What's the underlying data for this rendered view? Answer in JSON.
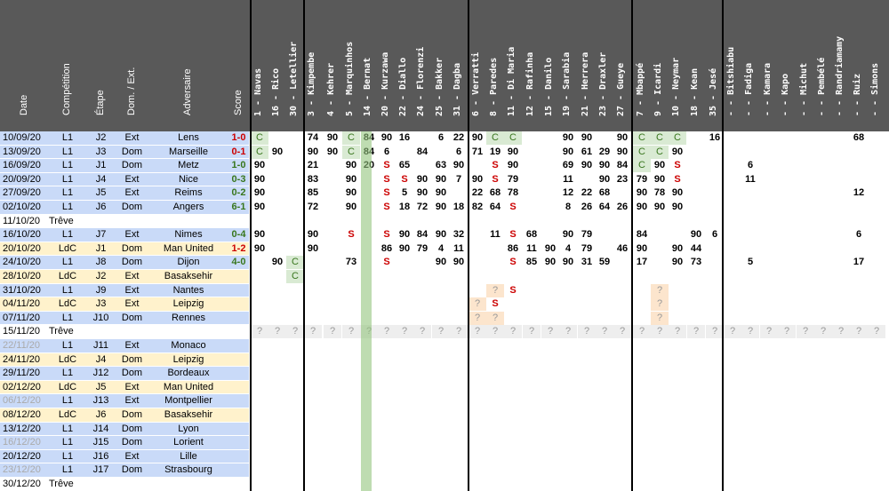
{
  "headers": {
    "fixed": [
      "Date",
      "Compétition",
      "Étape",
      "Dom. / Ext.",
      "Adversaire",
      "Score"
    ],
    "players": [
      {
        "num": "1",
        "name": "Navas"
      },
      {
        "num": "16",
        "name": "Rico"
      },
      {
        "num": "30",
        "name": "Letellier"
      },
      {
        "num": "3",
        "name": "Kimpembe"
      },
      {
        "num": "4",
        "name": "Kehrer"
      },
      {
        "num": "5",
        "name": "Marquinhos"
      },
      {
        "num": "14",
        "name": "Bernat"
      },
      {
        "num": "20",
        "name": "Kurzawa"
      },
      {
        "num": "22",
        "name": "Diallo"
      },
      {
        "num": "24",
        "name": "Florenzi"
      },
      {
        "num": "25",
        "name": "Bakker"
      },
      {
        "num": "31",
        "name": "Dagba"
      },
      {
        "num": "6",
        "name": "Verratti"
      },
      {
        "num": "8",
        "name": "Paredes"
      },
      {
        "num": "11",
        "name": "Di Maria"
      },
      {
        "num": "12",
        "name": "Rafinha"
      },
      {
        "num": "15",
        "name": "Danilo"
      },
      {
        "num": "19",
        "name": "Sarabia"
      },
      {
        "num": "21",
        "name": "Herrera"
      },
      {
        "num": "23",
        "name": "Draxler"
      },
      {
        "num": "27",
        "name": "Gueye"
      },
      {
        "num": "7",
        "name": "Mbappé"
      },
      {
        "num": "9",
        "name": "Icardi"
      },
      {
        "num": "10",
        "name": "Neymar"
      },
      {
        "num": "18",
        "name": "Kean"
      },
      {
        "num": "35",
        "name": "Jesé"
      },
      {
        "num": "-",
        "name": "Bitshiabu"
      },
      {
        "num": "-",
        "name": "Fadiga"
      },
      {
        "num": "-",
        "name": "Kamara"
      },
      {
        "num": "-",
        "name": "Kapo"
      },
      {
        "num": "-",
        "name": "Michut"
      },
      {
        "num": "-",
        "name": "Pembélé"
      },
      {
        "num": "-",
        "name": "Randriamamy"
      },
      {
        "num": "-",
        "name": "Ruiz"
      },
      {
        "num": "-",
        "name": "Simons"
      }
    ]
  },
  "colors": {
    "header_bg": "#595959",
    "row_blue": "#c9daf8",
    "row_yellow": "#fff2cc",
    "row_grey": "#d9d9d9",
    "win": "#38761d",
    "loss": "#cc0000",
    "draw": "#e69138",
    "bernat_col": "#93c47d"
  },
  "matches": [
    {
      "date": "10/09/20",
      "comp": "L1",
      "stage": "J2",
      "venue": "Ext",
      "opp": "Lens",
      "score": "1-0",
      "result": "L",
      "cells": {
        "0": "C",
        "3": "74",
        "4": "90",
        "5": "C",
        "6": "84",
        "7": "90",
        "8": "16",
        "10": "6",
        "11": "22",
        "12": "90",
        "13": "C",
        "14": "C",
        "17": "90",
        "18": "90",
        "20": "90",
        "21": "C",
        "22": "C",
        "23": "C",
        "25": "16",
        "33": "68"
      }
    },
    {
      "date": "13/09/20",
      "comp": "L1",
      "stage": "J3",
      "venue": "Dom",
      "opp": "Marseille",
      "score": "0-1",
      "result": "L",
      "cells": {
        "0": "C",
        "1": "90",
        "3": "90",
        "4": "90",
        "5": "C",
        "6": "84",
        "7": "6",
        "9": "84",
        "11": "6",
        "12": "71",
        "13": "19",
        "14": "90",
        "17": "90",
        "18": "61",
        "19": "29",
        "20": "90",
        "21": "C",
        "22": "C",
        "23": "90"
      }
    },
    {
      "date": "16/09/20",
      "comp": "L1",
      "stage": "J1",
      "venue": "Dom",
      "opp": "Metz",
      "score": "1-0",
      "result": "W",
      "cells": {
        "0": "90",
        "3": "21",
        "5": "90",
        "6": "20",
        "7": "S",
        "8": "65",
        "10": "63",
        "11": "90",
        "13": "S",
        "14": "90",
        "17": "69",
        "18": "90",
        "19": "90",
        "20": "84",
        "21": "C",
        "22": "90",
        "23": "S",
        "27": "6"
      }
    },
    {
      "date": "20/09/20",
      "comp": "L1",
      "stage": "J4",
      "venue": "Ext",
      "opp": "Nice",
      "score": "0-3",
      "result": "W",
      "cells": {
        "0": "90",
        "3": "83",
        "5": "90",
        "7": "S",
        "8": "S",
        "9": "90",
        "10": "90",
        "11": "7",
        "12": "90",
        "13": "S",
        "14": "79",
        "17": "11",
        "19": "90",
        "20": "23",
        "21": "79",
        "22": "90",
        "23": "S",
        "27": "11"
      }
    },
    {
      "date": "27/09/20",
      "comp": "L1",
      "stage": "J5",
      "venue": "Ext",
      "opp": "Reims",
      "score": "0-2",
      "result": "W",
      "cells": {
        "0": "90",
        "3": "85",
        "5": "90",
        "7": "S",
        "8": "5",
        "9": "90",
        "10": "90",
        "12": "22",
        "13": "68",
        "14": "78",
        "17": "12",
        "18": "22",
        "19": "68",
        "21": "90",
        "22": "78",
        "23": "90",
        "33": "12"
      }
    },
    {
      "date": "02/10/20",
      "comp": "L1",
      "stage": "J6",
      "venue": "Dom",
      "opp": "Angers",
      "score": "6-1",
      "result": "W",
      "cells": {
        "0": "90",
        "3": "72",
        "5": "90",
        "7": "S",
        "8": "18",
        "9": "72",
        "10": "90",
        "11": "18",
        "12": "82",
        "13": "64",
        "14": "S",
        "17": "8",
        "18": "26",
        "19": "64",
        "20": "26",
        "21": "90",
        "22": "90",
        "23": "90"
      }
    },
    {
      "date": "11/10/20",
      "comp": "Trêve",
      "stage": "",
      "venue": "",
      "opp": "",
      "score": "",
      "result": "",
      "treve": true,
      "cells": {}
    },
    {
      "date": "16/10/20",
      "comp": "L1",
      "stage": "J7",
      "venue": "Ext",
      "opp": "Nimes",
      "score": "0-4",
      "result": "W",
      "cells": {
        "0": "90",
        "3": "90",
        "5": "S",
        "7": "S",
        "8": "90",
        "9": "84",
        "10": "90",
        "11": "32",
        "13": "11",
        "14": "S",
        "15": "68",
        "17": "90",
        "18": "79",
        "21": "84",
        "24": "90",
        "25": "6",
        "33": "6"
      }
    },
    {
      "date": "20/10/20",
      "comp": "LdC",
      "stage": "J1",
      "venue": "Dom",
      "opp": "Man United",
      "score": "1-2",
      "result": "L",
      "cells": {
        "0": "90",
        "3": "90",
        "7": "86",
        "8": "90",
        "9": "79",
        "10": "4",
        "11": "11",
        "14": "86",
        "15": "11",
        "16": "90",
        "17": "4",
        "18": "79",
        "20": "46",
        "21": "90",
        "23": "90",
        "24": "44"
      }
    },
    {
      "date": "24/10/20",
      "comp": "L1",
      "stage": "J8",
      "venue": "Dom",
      "opp": "Dijon",
      "score": "4-0",
      "result": "W",
      "cells": {
        "1": "90",
        "2": "C",
        "5": "73",
        "7": "S",
        "10": "90",
        "11": "90",
        "14": "S",
        "15": "85",
        "16": "90",
        "17": "90",
        "18": "31",
        "19": "59",
        "21": "17",
        "23": "90",
        "24": "73",
        "27": "5",
        "33": "17"
      }
    },
    {
      "date": "28/10/20",
      "comp": "LdC",
      "stage": "J2",
      "venue": "Ext",
      "opp": "Basaksehir",
      "score": "",
      "result": "",
      "cells": {
        "2": "C"
      }
    },
    {
      "date": "31/10/20",
      "comp": "L1",
      "stage": "J9",
      "venue": "Ext",
      "opp": "Nantes",
      "score": "",
      "result": "",
      "cells": {
        "13": "?",
        "14": "S",
        "22": "?"
      }
    },
    {
      "date": "04/11/20",
      "comp": "LdC",
      "stage": "J3",
      "venue": "Ext",
      "opp": "Leipzig",
      "score": "",
      "result": "",
      "cells": {
        "12": "?",
        "13": "S",
        "22": "?"
      }
    },
    {
      "date": "07/11/20",
      "comp": "L1",
      "stage": "J10",
      "venue": "Dom",
      "opp": "Rennes",
      "score": "",
      "result": "",
      "cells": {
        "12": "?",
        "13": "?",
        "22": "?"
      }
    },
    {
      "date": "15/11/20",
      "comp": "Trêve",
      "stage": "",
      "venue": "",
      "opp": "",
      "score": "",
      "result": "",
      "treve": true,
      "cells": {}
    },
    {
      "date": "22/11/20",
      "comp": "L1",
      "stage": "J11",
      "venue": "Ext",
      "opp": "Monaco",
      "score": "",
      "result": "",
      "cells": {}
    },
    {
      "date": "24/11/20",
      "comp": "LdC",
      "stage": "J4",
      "venue": "Dom",
      "opp": "Leipzig",
      "score": "",
      "result": "",
      "cells": {}
    },
    {
      "date": "29/11/20",
      "comp": "L1",
      "stage": "J12",
      "venue": "Dom",
      "opp": "Bordeaux",
      "score": "",
      "result": "",
      "cells": {}
    },
    {
      "date": "02/12/20",
      "comp": "LdC",
      "stage": "J5",
      "venue": "Ext",
      "opp": "Man United",
      "score": "",
      "result": "",
      "cells": {}
    },
    {
      "date": "06/12/20",
      "comp": "L1",
      "stage": "J13",
      "venue": "Ext",
      "opp": "Montpellier",
      "score": "",
      "result": "",
      "cells": {}
    },
    {
      "date": "08/12/20",
      "comp": "LdC",
      "stage": "J6",
      "venue": "Dom",
      "opp": "Basaksehir",
      "score": "",
      "result": "",
      "cells": {}
    },
    {
      "date": "13/12/20",
      "comp": "L1",
      "stage": "J14",
      "venue": "Dom",
      "opp": "Lyon",
      "score": "",
      "result": "",
      "cells": {}
    },
    {
      "date": "16/12/20",
      "comp": "L1",
      "stage": "J15",
      "venue": "Dom",
      "opp": "Lorient",
      "score": "",
      "result": "",
      "cells": {}
    },
    {
      "date": "20/12/20",
      "comp": "L1",
      "stage": "J16",
      "venue": "Ext",
      "opp": "Lille",
      "score": "",
      "result": "",
      "cells": {}
    },
    {
      "date": "23/12/20",
      "comp": "L1",
      "stage": "J17",
      "venue": "Dom",
      "opp": "Strasbourg",
      "score": "",
      "result": "",
      "cells": {}
    },
    {
      "date": "30/12/20",
      "comp": "Trêve",
      "stage": "",
      "venue": "",
      "opp": "",
      "score": "",
      "result": "",
      "treve": true,
      "cells": {}
    }
  ]
}
